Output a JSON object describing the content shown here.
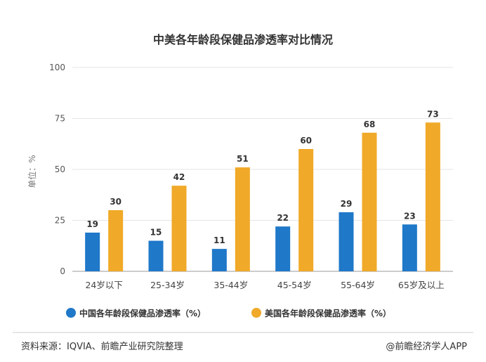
{
  "chart_data": {
    "type": "bar",
    "title": "中美各年龄段保健品渗透率对比情况",
    "ylabel": "单位：%",
    "ylim": [
      0,
      100
    ],
    "yticks": [
      "0",
      "25",
      "50",
      "75",
      "100"
    ],
    "categories": [
      "24岁以下",
      "25-34岁",
      "35-44岁",
      "45-54岁",
      "55-64岁",
      "65岁及以上"
    ],
    "series": [
      {
        "name": "中国各年龄段保健品渗透率（%）",
        "color": "#1f78c8",
        "values": [
          19,
          15,
          11,
          22,
          29,
          23
        ]
      },
      {
        "name": "美国各年龄段保健品渗透率（%）",
        "color": "#f0a928",
        "values": [
          30,
          42,
          51,
          60,
          68,
          73
        ]
      }
    ],
    "grid": true,
    "legend_position": "bottom"
  },
  "footer": {
    "source": "资料来源：IQVIA、前瞻产业研究院整理",
    "credit": "@前瞻经济学人APP"
  }
}
